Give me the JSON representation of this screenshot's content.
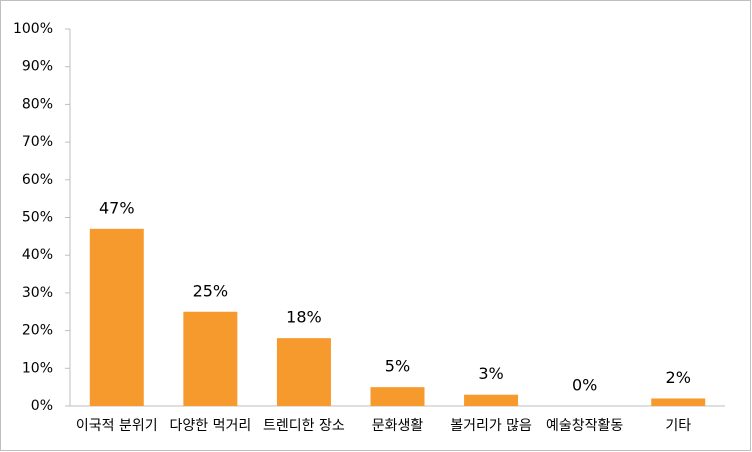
{
  "chart_data": {
    "type": "bar",
    "categories": [
      "이국적 분위기",
      "다양한 먹거리",
      "트렌디한 장소",
      "문화생활",
      "볼거리가 많음",
      "예술창작활동",
      "기타"
    ],
    "values": [
      47,
      25,
      18,
      5,
      3,
      0,
      2
    ],
    "value_labels": [
      "47%",
      "25%",
      "18%",
      "5%",
      "3%",
      "0%",
      "2%"
    ],
    "color": "#f79a2e",
    "ylim": [
      0,
      100
    ],
    "yticks": [
      {
        "value": 0,
        "label": "0%"
      },
      {
        "value": 10,
        "label": "10%"
      },
      {
        "value": 20,
        "label": "20%"
      },
      {
        "value": 30,
        "label": "30%"
      },
      {
        "value": 40,
        "label": "40%"
      },
      {
        "value": 50,
        "label": "50%"
      },
      {
        "value": 60,
        "label": "60%"
      },
      {
        "value": 70,
        "label": "70%"
      },
      {
        "value": 80,
        "label": "80%"
      },
      {
        "value": 90,
        "label": "90%"
      },
      {
        "value": 100,
        "label": "100%"
      }
    ],
    "grid": false
  }
}
